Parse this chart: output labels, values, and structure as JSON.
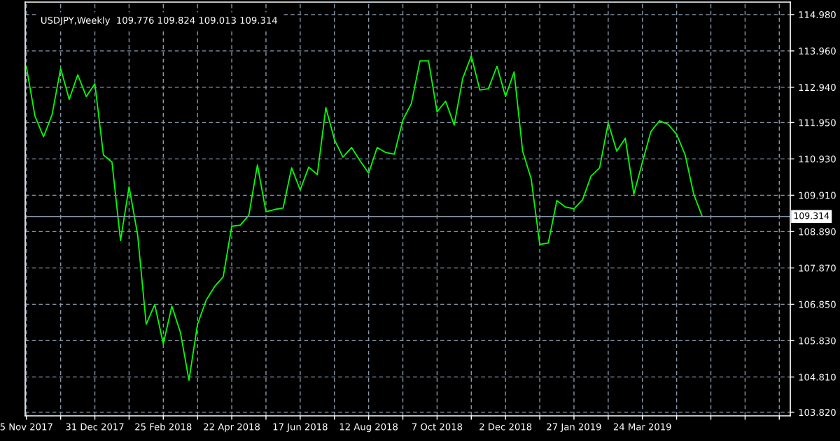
{
  "chart_data": {
    "type": "line",
    "title": "USDJPY,Weekly  109.776 109.824 109.013 109.314",
    "x": [
      "2017-11-05",
      "2017-11-12",
      "2017-11-19",
      "2017-11-26",
      "2017-12-03",
      "2017-12-10",
      "2017-12-17",
      "2017-12-24",
      "2017-12-31",
      "2018-01-07",
      "2018-01-14",
      "2018-01-21",
      "2018-01-28",
      "2018-02-04",
      "2018-02-11",
      "2018-02-18",
      "2018-02-25",
      "2018-03-04",
      "2018-03-11",
      "2018-03-18",
      "2018-03-25",
      "2018-04-01",
      "2018-04-08",
      "2018-04-15",
      "2018-04-22",
      "2018-04-29",
      "2018-05-06",
      "2018-05-13",
      "2018-05-20",
      "2018-05-27",
      "2018-06-03",
      "2018-06-10",
      "2018-06-17",
      "2018-06-24",
      "2018-07-01",
      "2018-07-08",
      "2018-07-15",
      "2018-07-22",
      "2018-07-29",
      "2018-08-05",
      "2018-08-12",
      "2018-08-19",
      "2018-08-26",
      "2018-09-02",
      "2018-09-09",
      "2018-09-16",
      "2018-09-23",
      "2018-09-30",
      "2018-10-07",
      "2018-10-14",
      "2018-10-21",
      "2018-10-28",
      "2018-11-04",
      "2018-11-11",
      "2018-11-18",
      "2018-11-25",
      "2018-12-02",
      "2018-12-09",
      "2018-12-16",
      "2018-12-23",
      "2018-12-30",
      "2019-01-06",
      "2019-01-13",
      "2019-01-20",
      "2019-01-27",
      "2019-02-03",
      "2019-02-10",
      "2019-02-17",
      "2019-02-24",
      "2019-03-03",
      "2019-03-10",
      "2019-03-17",
      "2019-03-24",
      "2019-03-31",
      "2019-04-07",
      "2019-04-14",
      "2019-04-21",
      "2019-04-28",
      "2019-05-05",
      "2019-05-12"
    ],
    "series": [
      {
        "color": "#00ff00",
        "values": [
          113.51,
          112.13,
          111.55,
          112.17,
          113.47,
          112.6,
          113.29,
          112.68,
          113.04,
          111.04,
          110.84,
          108.64,
          110.15,
          108.8,
          106.29,
          106.84,
          105.74,
          106.8,
          106.06,
          104.72,
          106.29,
          106.96,
          107.35,
          107.62,
          109.04,
          109.07,
          109.35,
          110.76,
          109.45,
          109.51,
          109.55,
          110.68,
          110.06,
          110.7,
          110.49,
          112.37,
          111.47,
          110.98,
          111.25,
          110.88,
          110.53,
          111.25,
          111.11,
          111.06,
          112.02,
          112.49,
          113.68,
          113.68,
          112.25,
          112.55,
          111.88,
          113.19,
          113.82,
          112.86,
          112.9,
          113.53,
          112.68,
          113.37,
          111.15,
          110.37,
          108.53,
          108.57,
          109.76,
          109.58,
          109.53,
          109.78,
          110.45,
          110.68,
          111.94,
          111.15,
          111.51,
          109.94,
          110.84,
          111.7,
          112.0,
          111.9,
          111.62,
          111.04,
          109.94,
          109.31
        ]
      }
    ],
    "xlim": [
      "2017-11-04",
      "2019-07-23"
    ],
    "xticks": [
      {
        "value": "2017-11-05",
        "label": "5 Nov 2017"
      },
      {
        "value": "2017-12-03",
        "label": null
      },
      {
        "value": "2017-12-31",
        "label": "31 Dec 2017"
      },
      {
        "value": "2018-01-28",
        "label": null
      },
      {
        "value": "2018-02-25",
        "label": "25 Feb 2018"
      },
      {
        "value": "2018-03-25",
        "label": null
      },
      {
        "value": "2018-04-22",
        "label": "22 Apr 2018"
      },
      {
        "value": "2018-05-20",
        "label": null
      },
      {
        "value": "2018-06-17",
        "label": "17 Jun 2018"
      },
      {
        "value": "2018-07-15",
        "label": null
      },
      {
        "value": "2018-08-12",
        "label": "12 Aug 2018"
      },
      {
        "value": "2018-09-09",
        "label": null
      },
      {
        "value": "2018-10-07",
        "label": "7 Oct 2018"
      },
      {
        "value": "2018-11-04",
        "label": null
      },
      {
        "value": "2018-12-02",
        "label": "2 Dec 2018"
      },
      {
        "value": "2018-12-30",
        "label": null
      },
      {
        "value": "2019-01-27",
        "label": "27 Jan 2019"
      },
      {
        "value": "2019-02-24",
        "label": null
      },
      {
        "value": "2019-03-24",
        "label": "24 Mar 2019"
      },
      {
        "value": "2019-04-21",
        "label": null
      },
      {
        "value": "2019-05-19",
        "label": null
      },
      {
        "value": "2019-06-16",
        "label": null
      },
      {
        "value": "2019-07-14",
        "label": null
      }
    ],
    "ylim": [
      103.72,
      115.33
    ],
    "yticks": [
      {
        "value": 103.82,
        "label": "103.820"
      },
      {
        "value": 104.81,
        "label": "104.810"
      },
      {
        "value": 105.83,
        "label": "105.830"
      },
      {
        "value": 106.85,
        "label": "106.850"
      },
      {
        "value": 107.87,
        "label": "107.870"
      },
      {
        "value": 108.89,
        "label": "108.890"
      },
      {
        "value": 109.91,
        "label": "109.910"
      },
      {
        "value": 110.93,
        "label": "110.930"
      },
      {
        "value": 111.95,
        "label": "111.950"
      },
      {
        "value": 112.94,
        "label": "112.940"
      },
      {
        "value": 113.96,
        "label": "113.960"
      },
      {
        "value": 114.98,
        "label": "114.980"
      }
    ],
    "ref_lines": [
      {
        "axis": "y",
        "value": 109.314,
        "label": "109.314",
        "color": "#8899aa"
      }
    ],
    "grid": true,
    "line_style": "solid",
    "marker": "none"
  }
}
